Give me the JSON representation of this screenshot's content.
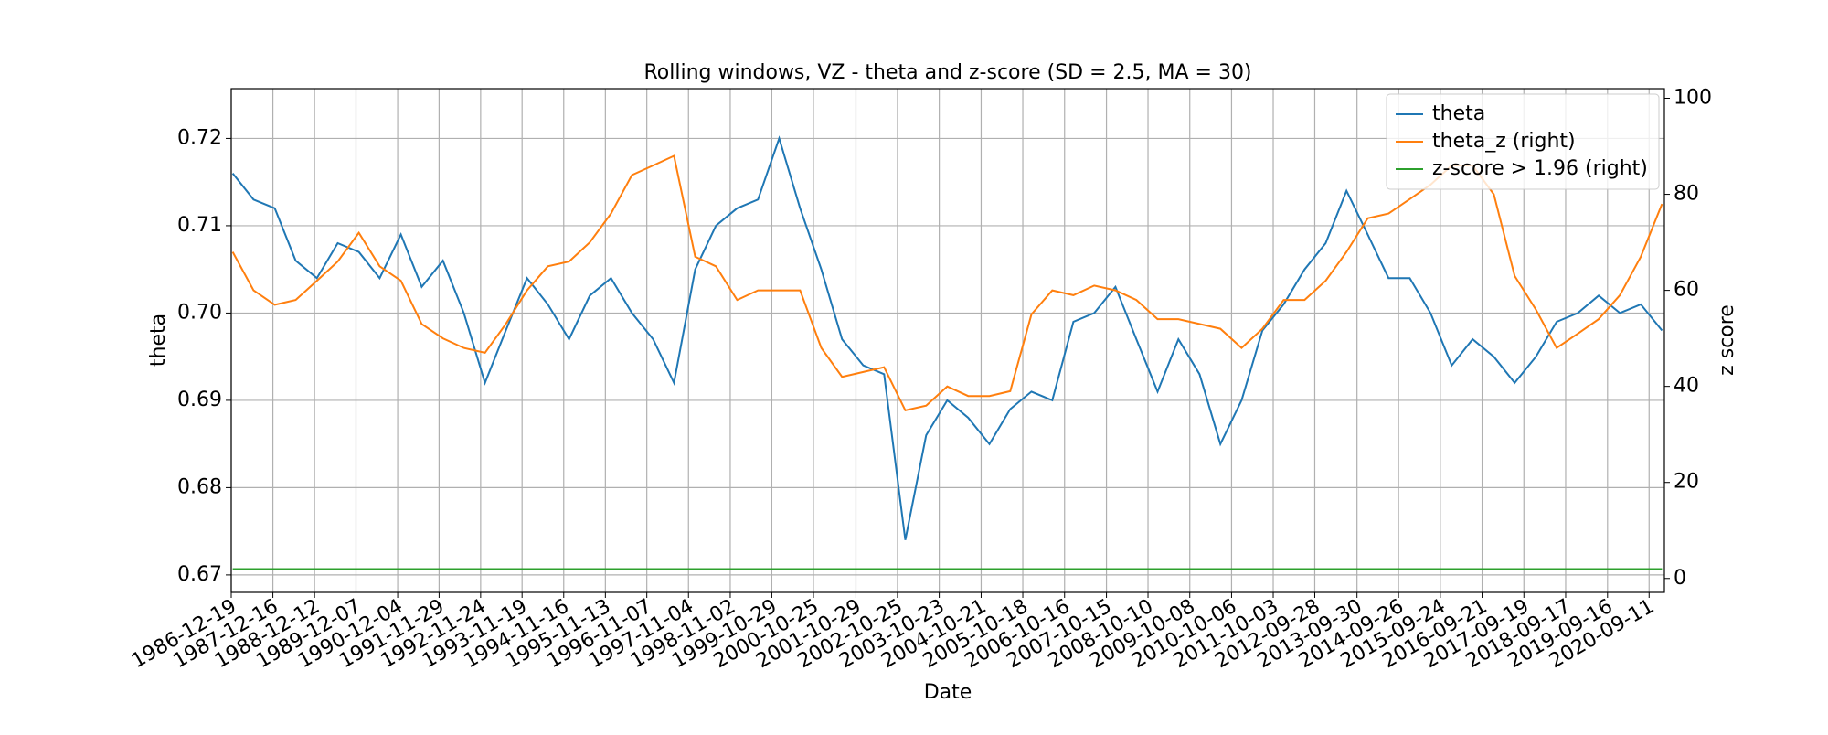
{
  "chart_data": {
    "type": "line",
    "title": "Rolling windows, VZ - theta and z-score (SD = 2.5, MA = 30)",
    "x_label": "Date",
    "y_label": "theta",
    "y2_label": "z score",
    "x": [
      "1987-01-01",
      "1987-07-01",
      "1988-01-01",
      "1988-07-01",
      "1989-01-01",
      "1989-07-01",
      "1990-01-01",
      "1990-07-01",
      "1991-01-01",
      "1991-07-01",
      "1992-01-01",
      "1992-07-01",
      "1993-01-01",
      "1993-07-01",
      "1994-01-01",
      "1994-07-01",
      "1995-01-01",
      "1995-07-01",
      "1996-01-01",
      "1996-07-01",
      "1997-01-01",
      "1997-07-01",
      "1998-01-01",
      "1998-07-01",
      "1999-01-01",
      "1999-07-01",
      "2000-01-01",
      "2000-07-01",
      "2001-01-01",
      "2001-07-01",
      "2002-01-01",
      "2002-07-01",
      "2003-01-01",
      "2003-07-01",
      "2004-01-01",
      "2004-07-01",
      "2005-01-01",
      "2005-07-01",
      "2006-01-01",
      "2006-07-01",
      "2007-01-01",
      "2007-07-01",
      "2008-01-01",
      "2008-07-01",
      "2009-01-01",
      "2009-07-01",
      "2010-01-01",
      "2010-07-01",
      "2011-01-01",
      "2011-07-01",
      "2012-01-01",
      "2012-07-01",
      "2013-01-01",
      "2013-07-01",
      "2014-01-01",
      "2014-07-01",
      "2015-01-01",
      "2015-07-01",
      "2016-01-01",
      "2016-07-01",
      "2017-01-01",
      "2017-07-01",
      "2018-01-01",
      "2018-07-01",
      "2019-01-01",
      "2019-07-01",
      "2020-01-01",
      "2020-07-01",
      "2021-01-01"
    ],
    "series": [
      {
        "name": "theta",
        "color": "#1f77b4",
        "axis": "y",
        "values": [
          0.716,
          0.713,
          0.712,
          0.706,
          0.704,
          0.708,
          0.707,
          0.704,
          0.709,
          0.703,
          0.706,
          0.7,
          0.692,
          0.698,
          0.704,
          0.701,
          0.697,
          0.702,
          0.704,
          0.7,
          0.697,
          0.692,
          0.705,
          0.71,
          0.712,
          0.713,
          0.72,
          0.712,
          0.705,
          0.697,
          0.694,
          0.693,
          0.674,
          0.686,
          0.69,
          0.688,
          0.685,
          0.689,
          0.691,
          0.69,
          0.699,
          0.7,
          0.703,
          0.697,
          0.691,
          0.697,
          0.693,
          0.685,
          0.69,
          0.698,
          0.701,
          0.705,
          0.708,
          0.714,
          0.709,
          0.704,
          0.704,
          0.7,
          0.694,
          0.697,
          0.695,
          0.692,
          0.695,
          0.699,
          0.7,
          0.702,
          0.7,
          0.701,
          0.698
        ]
      },
      {
        "name": "theta_z (right)",
        "color": "#ff7f0e",
        "axis": "y2",
        "values": [
          68,
          60,
          57,
          58,
          62,
          66,
          72,
          65,
          62,
          53,
          50,
          48,
          47,
          53,
          60,
          65,
          66,
          70,
          76,
          84,
          86,
          88,
          67,
          65,
          58,
          60,
          60,
          60,
          48,
          42,
          43,
          44,
          35,
          36,
          40,
          38,
          38,
          39,
          55,
          60,
          59,
          61,
          60,
          58,
          54,
          54,
          53,
          52,
          48,
          52,
          58,
          58,
          62,
          68,
          75,
          76,
          79,
          82,
          86,
          86,
          80,
          63,
          56,
          48,
          51,
          54,
          59,
          67,
          78
        ]
      },
      {
        "name": "z-score > 1.96 (right)",
        "color": "#2ca02c",
        "axis": "y2",
        "values": [
          1.96,
          1.96,
          1.96,
          1.96,
          1.96,
          1.96,
          1.96,
          1.96,
          1.96,
          1.96,
          1.96,
          1.96,
          1.96,
          1.96,
          1.96,
          1.96,
          1.96,
          1.96,
          1.96,
          1.96,
          1.96,
          1.96,
          1.96,
          1.96,
          1.96,
          1.96,
          1.96,
          1.96,
          1.96,
          1.96,
          1.96,
          1.96,
          1.96,
          1.96,
          1.96,
          1.96,
          1.96,
          1.96,
          1.96,
          1.96,
          1.96,
          1.96,
          1.96,
          1.96,
          1.96,
          1.96,
          1.96,
          1.96,
          1.96,
          1.96,
          1.96,
          1.96,
          1.96,
          1.96,
          1.96,
          1.96,
          1.96,
          1.96,
          1.96,
          1.96,
          1.96,
          1.96,
          1.96,
          1.96,
          1.96,
          1.96,
          1.96,
          1.96,
          1.96
        ]
      }
    ],
    "xlim": [
      "1986-12-19",
      "2021-01-22"
    ],
    "xticks": [
      "1986-12-19",
      "1987-12-16",
      "1988-12-12",
      "1989-12-07",
      "1990-12-04",
      "1991-11-29",
      "1992-11-24",
      "1993-11-19",
      "1994-11-16",
      "1995-11-13",
      "1996-11-07",
      "1997-11-04",
      "1998-11-02",
      "1999-10-29",
      "2000-10-25",
      "2001-10-29",
      "2002-10-25",
      "2003-10-23",
      "2004-10-21",
      "2005-10-18",
      "2006-10-16",
      "2007-10-15",
      "2008-10-10",
      "2009-10-08",
      "2010-10-06",
      "2011-10-03",
      "2012-09-28",
      "2013-09-30",
      "2014-09-26",
      "2015-09-24",
      "2016-09-21",
      "2017-09-19",
      "2018-09-17",
      "2019-09-16",
      "2020-09-11"
    ],
    "ylim": [
      0.668,
      0.7257
    ],
    "yticks": [
      0.67,
      0.68,
      0.69,
      {
        "value": 0.7,
        "label": "0.70"
      },
      0.71,
      0.72
    ],
    "y2lim": [
      -2.9,
      102
    ],
    "y2ticks": [
      0,
      20,
      40,
      60,
      80,
      100
    ],
    "grid": true,
    "legend": "upper right"
  }
}
